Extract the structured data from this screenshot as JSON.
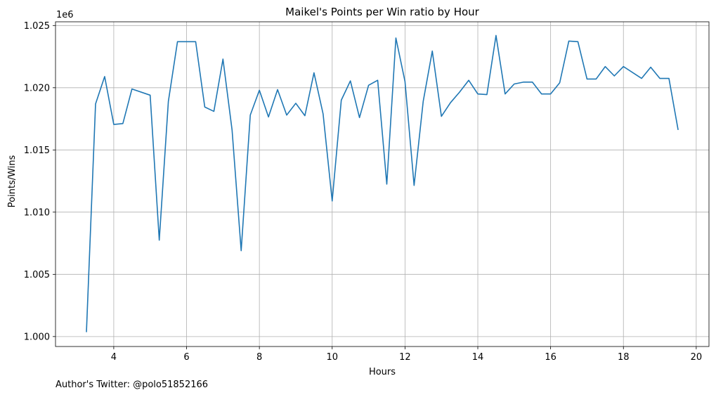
{
  "chart_data": {
    "type": "line",
    "title": "Maikel's Points per Win ratio by Hour",
    "xlabel": "Hours",
    "ylabel": "Points/Wins",
    "y_offset_label": "1e6",
    "footer": "Author's Twitter: @polo51852166",
    "xlim": [
      2.4,
      20.35
    ],
    "ylim": [
      999200,
      1025300
    ],
    "x_ticks": [
      4,
      6,
      8,
      10,
      12,
      14,
      16,
      18,
      20
    ],
    "x_tick_labels": [
      "4",
      "6",
      "8",
      "10",
      "12",
      "14",
      "16",
      "18",
      "20"
    ],
    "y_ticks": [
      1000000,
      1005000,
      1010000,
      1015000,
      1020000,
      1025000
    ],
    "y_tick_labels": [
      "1.000",
      "1.005",
      "1.010",
      "1.015",
      "1.020",
      "1.025"
    ],
    "grid": true,
    "series": [
      {
        "color": "#1f77b4",
        "x": [
          3.25,
          3.5,
          3.75,
          4.0,
          4.25,
          4.5,
          5.0,
          5.25,
          5.5,
          5.75,
          6.0,
          6.25,
          6.5,
          6.75,
          7.0,
          7.25,
          7.5,
          7.75,
          8.0,
          8.25,
          8.5,
          8.75,
          9.0,
          9.25,
          9.5,
          9.75,
          10.0,
          10.25,
          10.5,
          10.75,
          11.0,
          11.25,
          11.5,
          11.75,
          12.0,
          12.25,
          12.5,
          12.75,
          13.0,
          13.25,
          13.5,
          13.75,
          14.0,
          14.25,
          14.5,
          14.75,
          15.0,
          15.25,
          15.5,
          15.75,
          16.0,
          16.25,
          16.5,
          16.75,
          17.0,
          17.25,
          17.5,
          17.75,
          18.0,
          18.5,
          18.75,
          19.0,
          19.25,
          19.5
        ],
        "y": [
          1000400,
          1018700,
          1020900,
          1017050,
          1017120,
          1019900,
          1019400,
          1007750,
          1018900,
          1023700,
          1023700,
          1023700,
          1018450,
          1018100,
          1022300,
          1016600,
          1006900,
          1017800,
          1019800,
          1017650,
          1019850,
          1017800,
          1018750,
          1017750,
          1021200,
          1017900,
          1010900,
          1019000,
          1020550,
          1017600,
          1020200,
          1020600,
          1012250,
          1024000,
          1020500,
          1012150,
          1018900,
          1022950,
          1017700,
          1018800,
          1019650,
          1020600,
          1019500,
          1019450,
          1024200,
          1019500,
          1020300,
          1020450,
          1020450,
          1019500,
          1019500,
          1020400,
          1023750,
          1023700,
          1020700,
          1020700,
          1021700,
          1020950,
          1021700,
          1020750,
          1021650,
          1020750,
          1020750,
          1016650
        ]
      }
    ]
  }
}
